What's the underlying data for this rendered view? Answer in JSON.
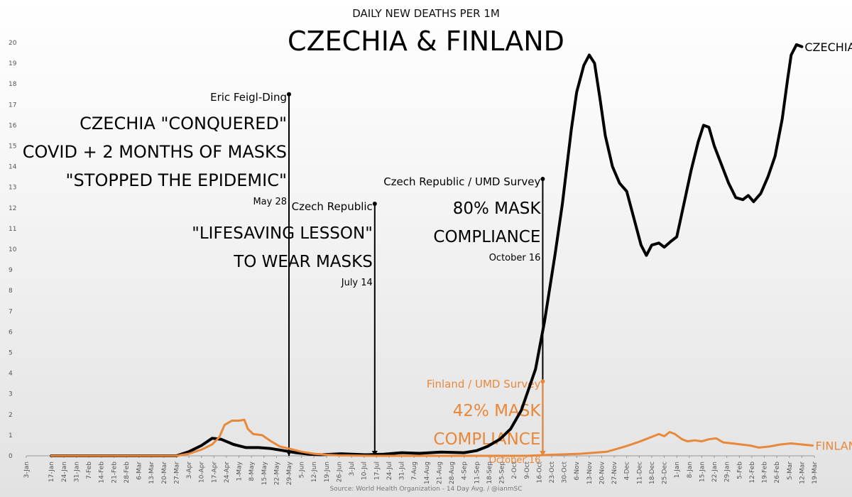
{
  "header": {
    "subtitle": "DAILY NEW DEATHS PER 1M",
    "title": "CZECHIA & FINLAND",
    "source": "Source: World Health Organization - 14 Day Avg. / @ianmSC"
  },
  "colors": {
    "czechia": "#000000",
    "finland": "#e8883a",
    "axis": "#555555"
  },
  "chart_data": {
    "type": "line",
    "title": "CZECHIA & FINLAND",
    "subtitle": "DAILY NEW DEATHS PER 1M",
    "ylim": [
      0,
      20
    ],
    "y_ticks": [
      0,
      1,
      2,
      3,
      4,
      5,
      6,
      7,
      8,
      9,
      10,
      11,
      12,
      13,
      14,
      15,
      16,
      17,
      18,
      19,
      20
    ],
    "x_tick_labels": [
      "3-Jan",
      "17-Jan",
      "24-Jan",
      "31-Jan",
      "7-Feb",
      "14-Feb",
      "21-Feb",
      "28-Feb",
      "6-Mar",
      "13-Mar",
      "20-Mar",
      "27-Mar",
      "3-Apr",
      "10-Apr",
      "17-Apr",
      "24-Apr",
      "1-May",
      "8-May",
      "15-May",
      "22-May",
      "29-May",
      "5-Jun",
      "12-Jun",
      "19-Jun",
      "26-Jun",
      "3-Jul",
      "10-Jul",
      "17-Jul",
      "24-Jul",
      "31-Jul",
      "7-Aug",
      "14-Aug",
      "21-Aug",
      "28-Aug",
      "4-Sep",
      "11-Sep",
      "18-Sep",
      "25-Sep",
      "2-Oct",
      "9-Oct",
      "16-Oct",
      "23-Oct",
      "30-Oct",
      "6-Nov",
      "13-Nov",
      "20-Nov",
      "27-Nov",
      "4-Dec",
      "11-Dec",
      "18-Dec",
      "25-Dec",
      "1-Jan",
      "8-Jan",
      "15-Jan",
      "22-Jan",
      "29-Jan",
      "5-Feb",
      "12-Feb",
      "19-Feb",
      "26-Feb",
      "5-Mar",
      "12-Mar",
      "19-Mar"
    ],
    "x_days": [
      0,
      14,
      21,
      28,
      35,
      42,
      49,
      56,
      63,
      70,
      77,
      84,
      91,
      98,
      105,
      112,
      119,
      126,
      133,
      140,
      147,
      154,
      161,
      168,
      175,
      182,
      189,
      196,
      203,
      210,
      217,
      224,
      231,
      238,
      245,
      252,
      259,
      266,
      273,
      280,
      287,
      294,
      301,
      308,
      315,
      322,
      329,
      336,
      343,
      350,
      357,
      364,
      371,
      378,
      385,
      392,
      399,
      406,
      413,
      420,
      427,
      434,
      441
    ],
    "grid": false,
    "series": [
      {
        "name": "CZECHIA",
        "label_position": "end",
        "points": [
          [
            14,
            0
          ],
          [
            84,
            0
          ],
          [
            91,
            0.2
          ],
          [
            98,
            0.5
          ],
          [
            104,
            0.85
          ],
          [
            109,
            0.8
          ],
          [
            116,
            0.55
          ],
          [
            123,
            0.4
          ],
          [
            130,
            0.4
          ],
          [
            137,
            0.35
          ],
          [
            144,
            0.25
          ],
          [
            151,
            0.15
          ],
          [
            158,
            0.08
          ],
          [
            165,
            0.05
          ],
          [
            176,
            0.1
          ],
          [
            190,
            0.05
          ],
          [
            200,
            0.08
          ],
          [
            210,
            0.15
          ],
          [
            220,
            0.12
          ],
          [
            232,
            0.18
          ],
          [
            245,
            0.15
          ],
          [
            252,
            0.25
          ],
          [
            258,
            0.45
          ],
          [
            265,
            0.8
          ],
          [
            271,
            1.3
          ],
          [
            277,
            2.2
          ],
          [
            281,
            3.2
          ],
          [
            285,
            4.2
          ],
          [
            290,
            6.5
          ],
          [
            296,
            9.8
          ],
          [
            300,
            12.2
          ],
          [
            305,
            15.8
          ],
          [
            308,
            17.6
          ],
          [
            312,
            18.9
          ],
          [
            315,
            19.4
          ],
          [
            318,
            19.0
          ],
          [
            321,
            17.3
          ],
          [
            324,
            15.5
          ],
          [
            328,
            14.0
          ],
          [
            332,
            13.2
          ],
          [
            336,
            12.8
          ],
          [
            340,
            11.5
          ],
          [
            344,
            10.2
          ],
          [
            347,
            9.7
          ],
          [
            350,
            10.2
          ],
          [
            354,
            10.3
          ],
          [
            357,
            10.1
          ],
          [
            361,
            10.4
          ],
          [
            364,
            10.6
          ],
          [
            368,
            12.2
          ],
          [
            372,
            13.8
          ],
          [
            376,
            15.2
          ],
          [
            379,
            16.0
          ],
          [
            382,
            15.9
          ],
          [
            385,
            15.0
          ],
          [
            389,
            14.1
          ],
          [
            393,
            13.2
          ],
          [
            397,
            12.5
          ],
          [
            401,
            12.4
          ],
          [
            404,
            12.6
          ],
          [
            407,
            12.3
          ],
          [
            411,
            12.7
          ],
          [
            415,
            13.5
          ],
          [
            419,
            14.5
          ],
          [
            423,
            16.3
          ],
          [
            426,
            18.2
          ],
          [
            428,
            19.4
          ],
          [
            431,
            19.9
          ],
          [
            434,
            19.8
          ]
        ]
      },
      {
        "name": "FINLAND",
        "label_position": "end",
        "points": [
          [
            14,
            0
          ],
          [
            84,
            0
          ],
          [
            91,
            0.1
          ],
          [
            98,
            0.3
          ],
          [
            104,
            0.55
          ],
          [
            108,
            0.9
          ],
          [
            111,
            1.5
          ],
          [
            115,
            1.7
          ],
          [
            119,
            1.7
          ],
          [
            122,
            1.75
          ],
          [
            124,
            1.3
          ],
          [
            127,
            1.05
          ],
          [
            132,
            1.0
          ],
          [
            137,
            0.7
          ],
          [
            142,
            0.45
          ],
          [
            147,
            0.35
          ],
          [
            154,
            0.2
          ],
          [
            161,
            0.1
          ],
          [
            168,
            0.05
          ],
          [
            175,
            0.02
          ],
          [
            196,
            0
          ],
          [
            240,
            0
          ],
          [
            280,
            0
          ],
          [
            294,
            0.05
          ],
          [
            310,
            0.1
          ],
          [
            325,
            0.2
          ],
          [
            335,
            0.45
          ],
          [
            342,
            0.65
          ],
          [
            348,
            0.85
          ],
          [
            354,
            1.05
          ],
          [
            357,
            0.95
          ],
          [
            360,
            1.15
          ],
          [
            363,
            1.05
          ],
          [
            367,
            0.8
          ],
          [
            370,
            0.7
          ],
          [
            374,
            0.75
          ],
          [
            378,
            0.7
          ],
          [
            382,
            0.8
          ],
          [
            386,
            0.85
          ],
          [
            390,
            0.65
          ],
          [
            395,
            0.6
          ],
          [
            400,
            0.55
          ],
          [
            405,
            0.5
          ],
          [
            410,
            0.4
          ],
          [
            416,
            0.45
          ],
          [
            422,
            0.55
          ],
          [
            428,
            0.6
          ],
          [
            434,
            0.55
          ],
          [
            440,
            0.5
          ]
        ]
      }
    ],
    "annotations": [
      {
        "color": "black",
        "day": 147,
        "value_top": 17.5,
        "lines": [
          "Eric Feigl-Ding",
          "CZECHIA \"CONQUERED\"",
          "COVID + 2 MONTHS OF MASKS",
          "\"STOPPED THE EPIDEMIC\"",
          "May 28"
        ]
      },
      {
        "color": "black",
        "day": 195,
        "value_top": 12.2,
        "lines": [
          "Czech Republic",
          "\"LIFESAVING LESSON\"",
          "TO WEAR MASKS",
          "July 14"
        ]
      },
      {
        "color": "black",
        "day": 289,
        "value_top": 13.4,
        "lines": [
          "Czech Republic / UMD Survey",
          "80% MASK",
          "COMPLIANCE",
          "October 16"
        ]
      },
      {
        "color": "orange",
        "day": 289,
        "value_top": 3.6,
        "lines": [
          "Finland / UMD Survey",
          "42% MASK",
          "COMPLIANCE",
          "October 16"
        ]
      }
    ]
  }
}
